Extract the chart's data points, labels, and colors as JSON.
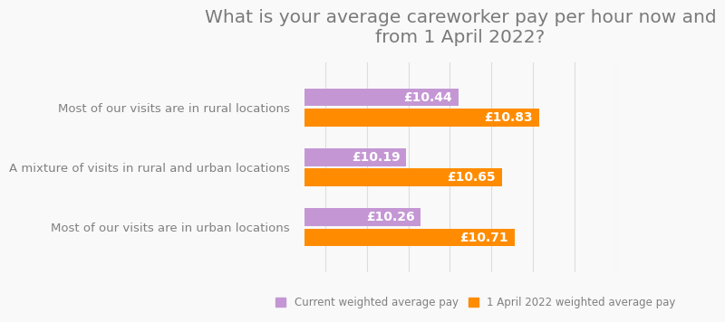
{
  "title": "What is your average careworker pay per hour now and\nfrom 1 April 2022?",
  "categories": [
    "Most of our visits are in urban locations",
    "A mixture of visits in rural and urban locations",
    "Most of our visits are in rural locations"
  ],
  "current_pay": [
    10.26,
    10.19,
    10.44
  ],
  "april_pay": [
    10.71,
    10.65,
    10.83
  ],
  "current_labels": [
    "£10.26",
    "£10.19",
    "£10.44"
  ],
  "april_labels": [
    "£10.71",
    "£10.65",
    "£10.83"
  ],
  "current_color": "#c497d4",
  "april_color": "#ff8c00",
  "bar_height": 0.3,
  "xlim": [
    9.7,
    11.2
  ],
  "title_color": "#7a7a7a",
  "label_color": "#808080",
  "background_color": "#f9f9f9",
  "legend_current": "Current weighted average pay",
  "legend_april": "1 April 2022 weighted average pay",
  "title_fontsize": 14.5,
  "label_fontsize": 9.5,
  "bar_label_fontsize": 10,
  "grid_color": "#dddddd"
}
